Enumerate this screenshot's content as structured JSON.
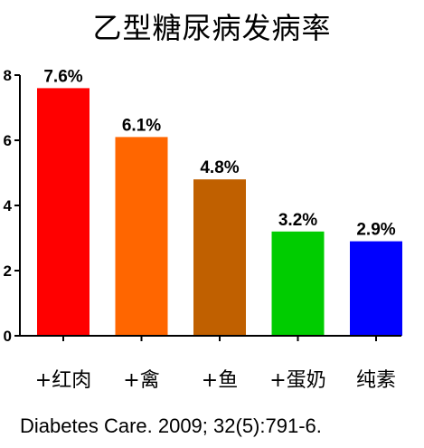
{
  "title": "乙型糖尿病发病率",
  "citation": "Diabetes Care. 2009; 32(5):791-6.",
  "chart_data": {
    "type": "bar",
    "title": "乙型糖尿病发病率",
    "xlabel": "",
    "ylabel": "",
    "categories": [
      "+红肉",
      "+禽",
      "+鱼",
      "+蛋奶",
      "纯素"
    ],
    "values": [
      7.6,
      6.1,
      4.8,
      3.2,
      2.9
    ],
    "data_labels": [
      "7.6%",
      "6.1%",
      "4.8%",
      "3.2%",
      "2.9%"
    ],
    "colors": [
      "#ff0000",
      "#ff6600",
      "#c06000",
      "#00cc00",
      "#0000ff"
    ],
    "ylim": [
      0,
      8
    ],
    "yticks": [
      0,
      2,
      4,
      6,
      8
    ],
    "grid": false,
    "legend": "none"
  }
}
